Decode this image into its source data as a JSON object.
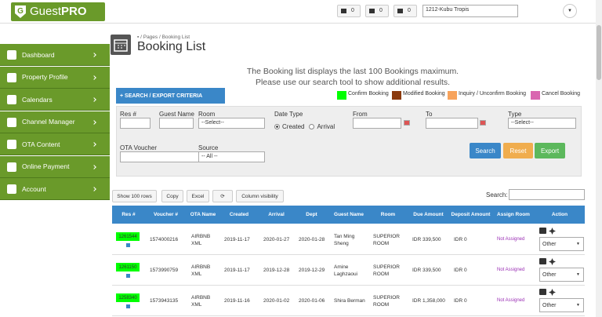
{
  "header": {
    "logo_main": "Guest",
    "logo_bold": "PRO",
    "badges": [
      "0",
      "0",
      "0"
    ],
    "property": "1212-Kubu Tropis"
  },
  "sidebar": {
    "items": [
      "Dashboard",
      "Property Profile",
      "Calendars",
      "Channel Manager",
      "OTA Content",
      "Online Payment",
      "Account"
    ]
  },
  "breadcrumb": [
    "Pages",
    "Booking List"
  ],
  "title": "Booking List",
  "info": [
    "The Booking list displays the last 100 Bookings maximum.",
    "Please use our search tool to show additional results."
  ],
  "search_toggle": "+ SEARCH / EXPORT CRITERIA",
  "legend": [
    {
      "name": "Confirm Booking",
      "color": "#00ff00"
    },
    {
      "name": "Modified Booking",
      "color": "#8b3a0e"
    },
    {
      "name": "Inquiry / Unconfirm Booking",
      "color": "#f7a35c"
    },
    {
      "name": "Cancel Booking",
      "color": "#d966b0"
    }
  ],
  "form": {
    "res": "Res #",
    "guest": "Guest Name",
    "room": "Room",
    "room_value": "--Select--",
    "date_type": "Date Type",
    "created": "Created",
    "arrival": "Arrival",
    "from": "From",
    "to": "To",
    "type": "Type",
    "type_value": "--Select--",
    "voucher": "OTA Voucher",
    "source": "Source",
    "source_value": "-- All --",
    "search": "Search",
    "reset": "Reset",
    "export": "Export"
  },
  "toolbar": {
    "buttons": [
      "Show 100 rows",
      "Copy",
      "Excel"
    ],
    "colvis": "Column visibility",
    "search_label": "Search:"
  },
  "table": {
    "headers": [
      "Res #",
      "Voucher #",
      "OTA Name",
      "Created",
      "Arrival",
      "Dept",
      "Guest Name",
      "Room",
      "Due Amount",
      "Deposit Amount",
      "Assign Room",
      "Action"
    ],
    "rows": [
      [
        "1261544",
        "1574000216",
        "AIRBNB XML",
        "2019-11-17",
        "2020-01-27",
        "2020-01-28",
        "Tan Ming Sheng",
        "SUPERIOR ROOM",
        "IDR 339,500",
        "IDR 0",
        "Not Assigned",
        "Other"
      ],
      [
        "1261150",
        "1573990759",
        "AIRBNB XML",
        "2019-11-17",
        "2019-12-28",
        "2019-12-29",
        "Amine Laghzaoui",
        "SUPERIOR ROOM",
        "IDR 339,500",
        "IDR 0",
        "Not Assigned",
        "Other"
      ],
      [
        "1258340",
        "1573943135",
        "AIRBNB XML",
        "2019-11-16",
        "2020-01-02",
        "2020-01-06",
        "Shira Berman",
        "SUPERIOR ROOM",
        "IDR 1,358,000",
        "IDR 0",
        "Not Assigned",
        "Other"
      ]
    ]
  }
}
